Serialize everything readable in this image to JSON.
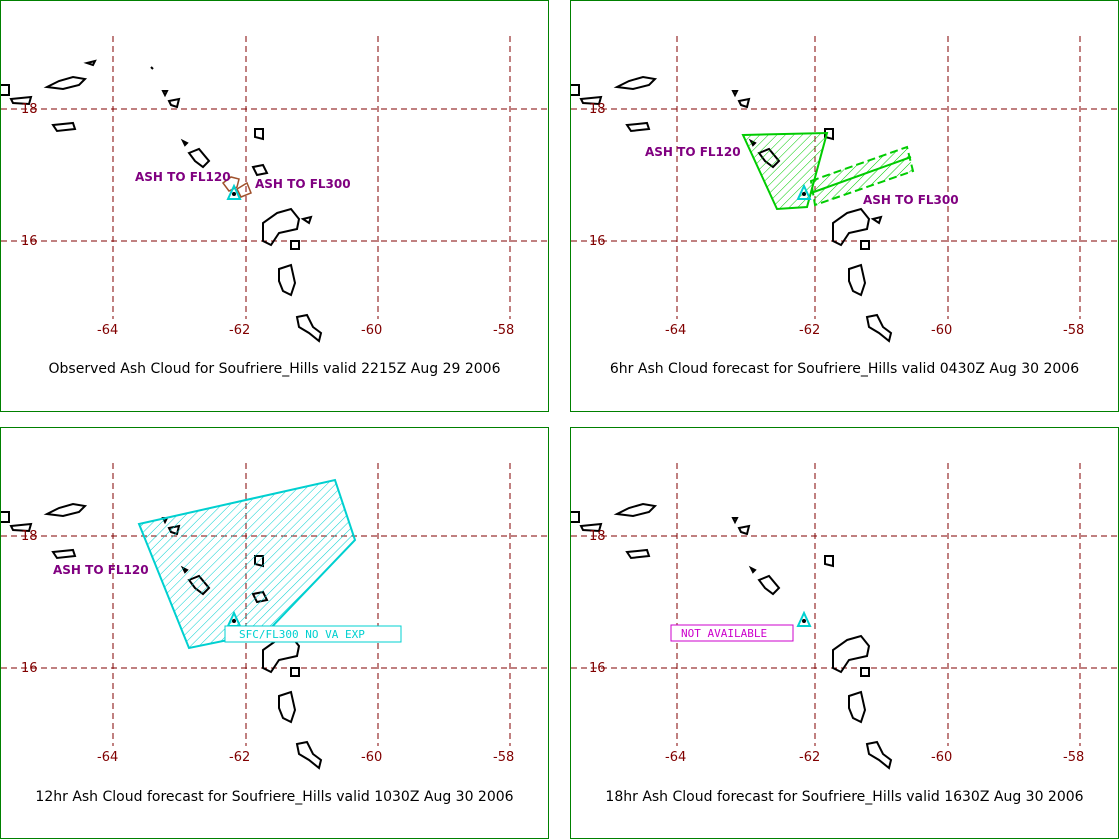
{
  "panels": [
    {
      "caption": "Observed Ash Cloud for Soufriere_Hills valid 2215Z Aug 29 2006",
      "lat_labels": [
        "18",
        "16"
      ],
      "lon_labels": [
        "-64",
        "-62",
        "-60",
        "-58"
      ],
      "ash_labels": [
        "ASH TO FL120",
        "ASH TO FL300"
      ]
    },
    {
      "caption": "6hr Ash Cloud forecast for Soufriere_Hills valid 0430Z Aug 30 2006",
      "lat_labels": [
        "18",
        "16"
      ],
      "lon_labels": [
        "-64",
        "-62",
        "-60",
        "-58"
      ],
      "ash_labels": [
        "ASH TO FL120",
        "ASH TO FL300"
      ]
    },
    {
      "caption": "12hr Ash Cloud forecast for Soufriere_Hills valid 1030Z Aug 30 2006",
      "lat_labels": [
        "18",
        "16"
      ],
      "lon_labels": [
        "-64",
        "-62",
        "-60",
        "-58"
      ],
      "ash_labels": [
        "ASH TO FL120"
      ],
      "box_label": "SFC/FL300 NO VA EXP"
    },
    {
      "caption": "18hr Ash Cloud forecast for Soufriere_Hills valid 1630Z Aug 30 2006",
      "lat_labels": [
        "18",
        "16"
      ],
      "lon_labels": [
        "-64",
        "-62",
        "-60",
        "-58"
      ],
      "box_label": "NOT AVAILABLE"
    }
  ],
  "colors": {
    "grid": "#800000",
    "coastline": "#000000",
    "ash_fl120_obs": "#a0522d",
    "ash_6hr": "#00cc00",
    "ash_12hr": "#00d0d0",
    "volcano": "#00d0d0",
    "label": "#800080",
    "border": "#008000"
  },
  "icons": [
    "volcano-icon"
  ]
}
